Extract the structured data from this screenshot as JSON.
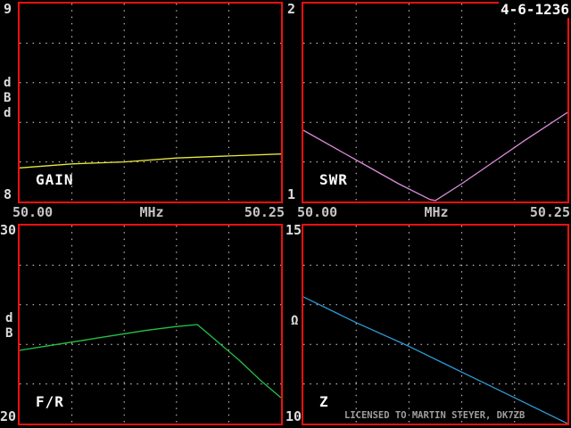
{
  "header": {
    "date": "4-6-1236"
  },
  "footer": {
    "license": "LICENSED TO MARTIN STEYER, DK7ZB"
  },
  "colors": {
    "border": "#ef1010",
    "grid": "#d9d9d9",
    "text_white": "#fcfcfc",
    "text_ticks": "#dcdcdc",
    "text_freq": "#c4c4c4",
    "text_license": "#9e9e9e",
    "gain": "#e8e840",
    "swr": "#d98cd9",
    "fr": "#25c244",
    "z": "#2f9bd8"
  },
  "freq_axis": {
    "start": "50.00",
    "unit": "MHz",
    "end": "50.25"
  },
  "chart_data": [
    {
      "id": "gain",
      "type": "line",
      "title": "GAIN",
      "ylabel": "dBd",
      "ylabel_stack": "d\nB\nd",
      "ytick_top": "9",
      "ytick_bottom": "8",
      "ylim": [
        8,
        9
      ],
      "xlim": [
        50.0,
        50.25
      ],
      "xlabel": "MHz",
      "xticks": [
        "50.00",
        "50.25"
      ],
      "grid": "dotted 5x5",
      "color_key": "gain",
      "x": [
        50.0,
        50.05,
        50.1,
        50.15,
        50.2,
        50.25
      ],
      "values": [
        8.17,
        8.19,
        8.2,
        8.22,
        8.23,
        8.24
      ]
    },
    {
      "id": "swr",
      "type": "line",
      "title": "SWR",
      "ylabel": "",
      "ylabel_stack": "",
      "ytick_top": "2",
      "ytick_bottom": "1",
      "ylim": [
        1,
        2
      ],
      "xlim": [
        50.0,
        50.25
      ],
      "xlabel": "MHz",
      "xticks": [
        "50.00",
        "50.25"
      ],
      "grid": "dotted 5x5",
      "color_key": "swr",
      "x": [
        50.0,
        50.03,
        50.06,
        50.09,
        50.12,
        50.125,
        50.15,
        50.18,
        50.21,
        50.25
      ],
      "values": [
        1.36,
        1.27,
        1.18,
        1.09,
        1.01,
        1.005,
        1.09,
        1.2,
        1.31,
        1.45
      ]
    },
    {
      "id": "fr",
      "type": "line",
      "title": "F/R",
      "ylabel": "dB",
      "ylabel_stack": "d\nB",
      "ytick_top": "30",
      "ytick_bottom": "20",
      "ylim": [
        20,
        30
      ],
      "xlim": [
        50.0,
        50.25
      ],
      "xlabel": "MHz",
      "xticks": [
        "50.00",
        "50.25"
      ],
      "grid": "dotted 5x5",
      "color_key": "fr",
      "x": [
        50.0,
        50.03,
        50.06,
        50.09,
        50.12,
        50.15,
        50.17,
        50.19,
        50.21,
        50.23,
        50.25
      ],
      "values": [
        23.7,
        23.95,
        24.2,
        24.45,
        24.7,
        24.9,
        25.0,
        24.1,
        23.2,
        22.2,
        21.3
      ]
    },
    {
      "id": "z",
      "type": "line",
      "title": "Z",
      "ylabel": "Ω",
      "ylabel_stack": "Ω",
      "ytick_top": "15",
      "ytick_bottom": "10",
      "ylim": [
        10,
        15
      ],
      "xlim": [
        50.0,
        50.25
      ],
      "xlabel": "MHz",
      "xticks": [
        "50.00",
        "50.25"
      ],
      "grid": "dotted 5x5",
      "color_key": "z",
      "x": [
        50.0,
        50.05,
        50.1,
        50.15,
        50.2,
        50.25
      ],
      "values": [
        13.2,
        12.55,
        11.95,
        11.3,
        10.65,
        10.0
      ]
    }
  ]
}
